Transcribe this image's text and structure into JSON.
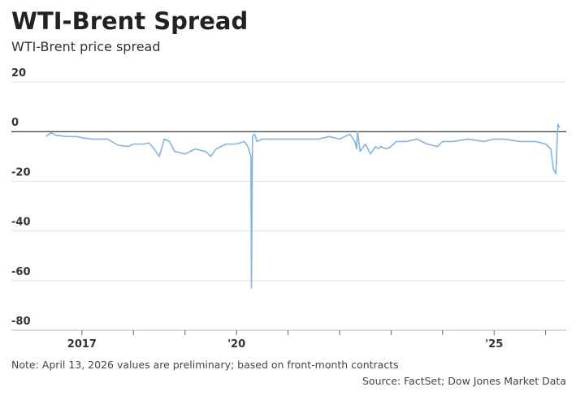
{
  "chart_data": {
    "type": "line",
    "title": "WTI-Brent Spread",
    "subtitle": "WTI-Brent price spread",
    "note": "Note: April 13, 2026 values are preliminary; based on front-month contracts",
    "source": "Source: FactSet; Dow Jones Market Data",
    "xlim": [
      2015.63,
      2026.4
    ],
    "xticks": [
      2017,
      {
        "value": 2020,
        "label": "'20"
      },
      {
        "value": 2025,
        "label": "'25"
      }
    ],
    "xminor_ticks": [
      2018,
      2019,
      2021,
      2022,
      2023,
      2024,
      2026
    ],
    "ylim": [
      -80,
      20
    ],
    "yticks": [
      20,
      0,
      -20,
      -40,
      -60,
      -80
    ],
    "grid": true,
    "series": [
      {
        "name": "WTI-Brent spread",
        "color": "#86b3df",
        "x": [
          2016.3,
          2016.4,
          2016.5,
          2016.7,
          2016.9,
          2017.0,
          2017.2,
          2017.5,
          2017.7,
          2017.9,
          2018.0,
          2018.2,
          2018.3,
          2018.4,
          2018.5,
          2018.6,
          2018.7,
          2018.8,
          2019.0,
          2019.2,
          2019.4,
          2019.5,
          2019.6,
          2019.7,
          2019.8,
          2019.9,
          2020.0,
          2020.15,
          2020.22,
          2020.28,
          2020.29,
          2020.31,
          2020.35,
          2020.4,
          2020.5,
          2020.7,
          2021.0,
          2021.3,
          2021.6,
          2021.8,
          2022.0,
          2022.1,
          2022.2,
          2022.3,
          2022.33,
          2022.35,
          2022.4,
          2022.5,
          2022.6,
          2022.7,
          2022.75,
          2022.8,
          2022.9,
          2023.0,
          2023.1,
          2023.3,
          2023.5,
          2023.7,
          2023.9,
          2024.0,
          2024.2,
          2024.5,
          2024.8,
          2025.0,
          2025.2,
          2025.5,
          2025.8,
          2026.0,
          2026.1,
          2026.15,
          2026.2,
          2026.22,
          2026.24,
          2026.26,
          2026.28
        ],
        "values": [
          -2,
          -0.5,
          -1.5,
          -2,
          -2,
          -2.5,
          -3,
          -3,
          -5.5,
          -6,
          -5,
          -5,
          -4.5,
          -7,
          -10,
          -3,
          -4,
          -8,
          -9,
          -7,
          -8,
          -10,
          -7,
          -6,
          -5,
          -5,
          -5,
          -4,
          -6,
          -10,
          -63,
          -2,
          -1,
          -4,
          -3,
          -3,
          -3,
          -3,
          -3,
          -2,
          -3,
          -2,
          -1,
          -4,
          -7,
          0,
          -8,
          -5,
          -9,
          -6,
          -7,
          -6,
          -7,
          -6,
          -4,
          -4,
          -3,
          -5,
          -6,
          -4,
          -4,
          -3,
          -4,
          -3,
          -3,
          -4,
          -4,
          -5,
          -7,
          -15,
          -17,
          -5,
          3,
          2,
          2
        ]
      }
    ]
  }
}
